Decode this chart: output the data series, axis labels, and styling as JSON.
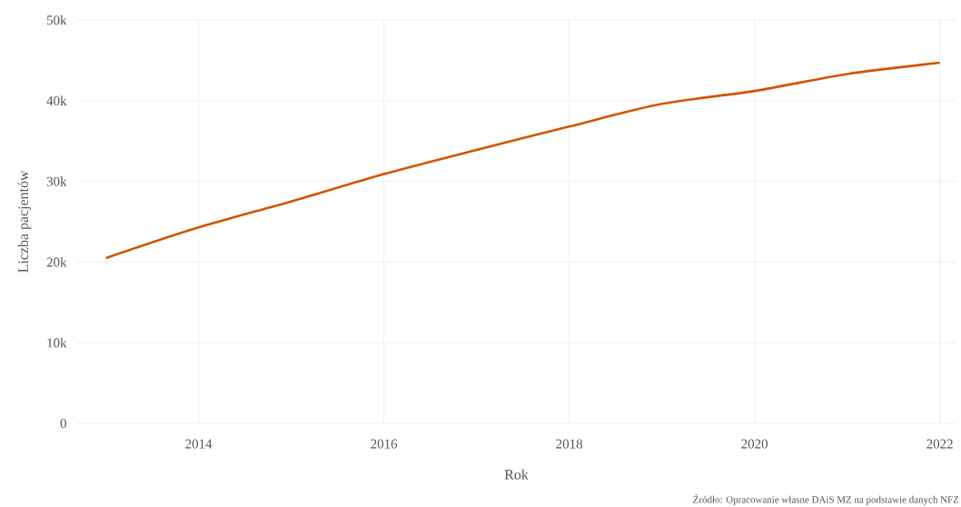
{
  "chart_data": {
    "type": "line",
    "x": [
      2013,
      2014,
      2015,
      2016,
      2017,
      2018,
      2019,
      2020,
      2021,
      2022
    ],
    "series": [
      {
        "color": "#d35400",
        "values": [
          20500,
          24300,
          27500,
          30900,
          33900,
          36800,
          39600,
          41200,
          43300,
          44700
        ]
      }
    ],
    "xlabel": "Rok",
    "ylabel": "Liczba pacjentów",
    "xlim": [
      2012.69,
      2022.17
    ],
    "ylim": [
      0,
      50000
    ],
    "xticks": [
      2014,
      2016,
      2018,
      2020,
      2022
    ],
    "yticks": [
      {
        "value": 0,
        "label": "0"
      },
      {
        "value": 10000,
        "label": "10k"
      },
      {
        "value": 20000,
        "label": "20k"
      },
      {
        "value": 30000,
        "label": "30k"
      },
      {
        "value": 40000,
        "label": "40k"
      },
      {
        "value": 50000,
        "label": "50k"
      }
    ],
    "grid": true,
    "legend": false,
    "marker": "none",
    "line_style": "solid",
    "annotations": [
      "Źródło: Opracowanie własne DAiS MZ na podstawie danych NFZ"
    ]
  }
}
